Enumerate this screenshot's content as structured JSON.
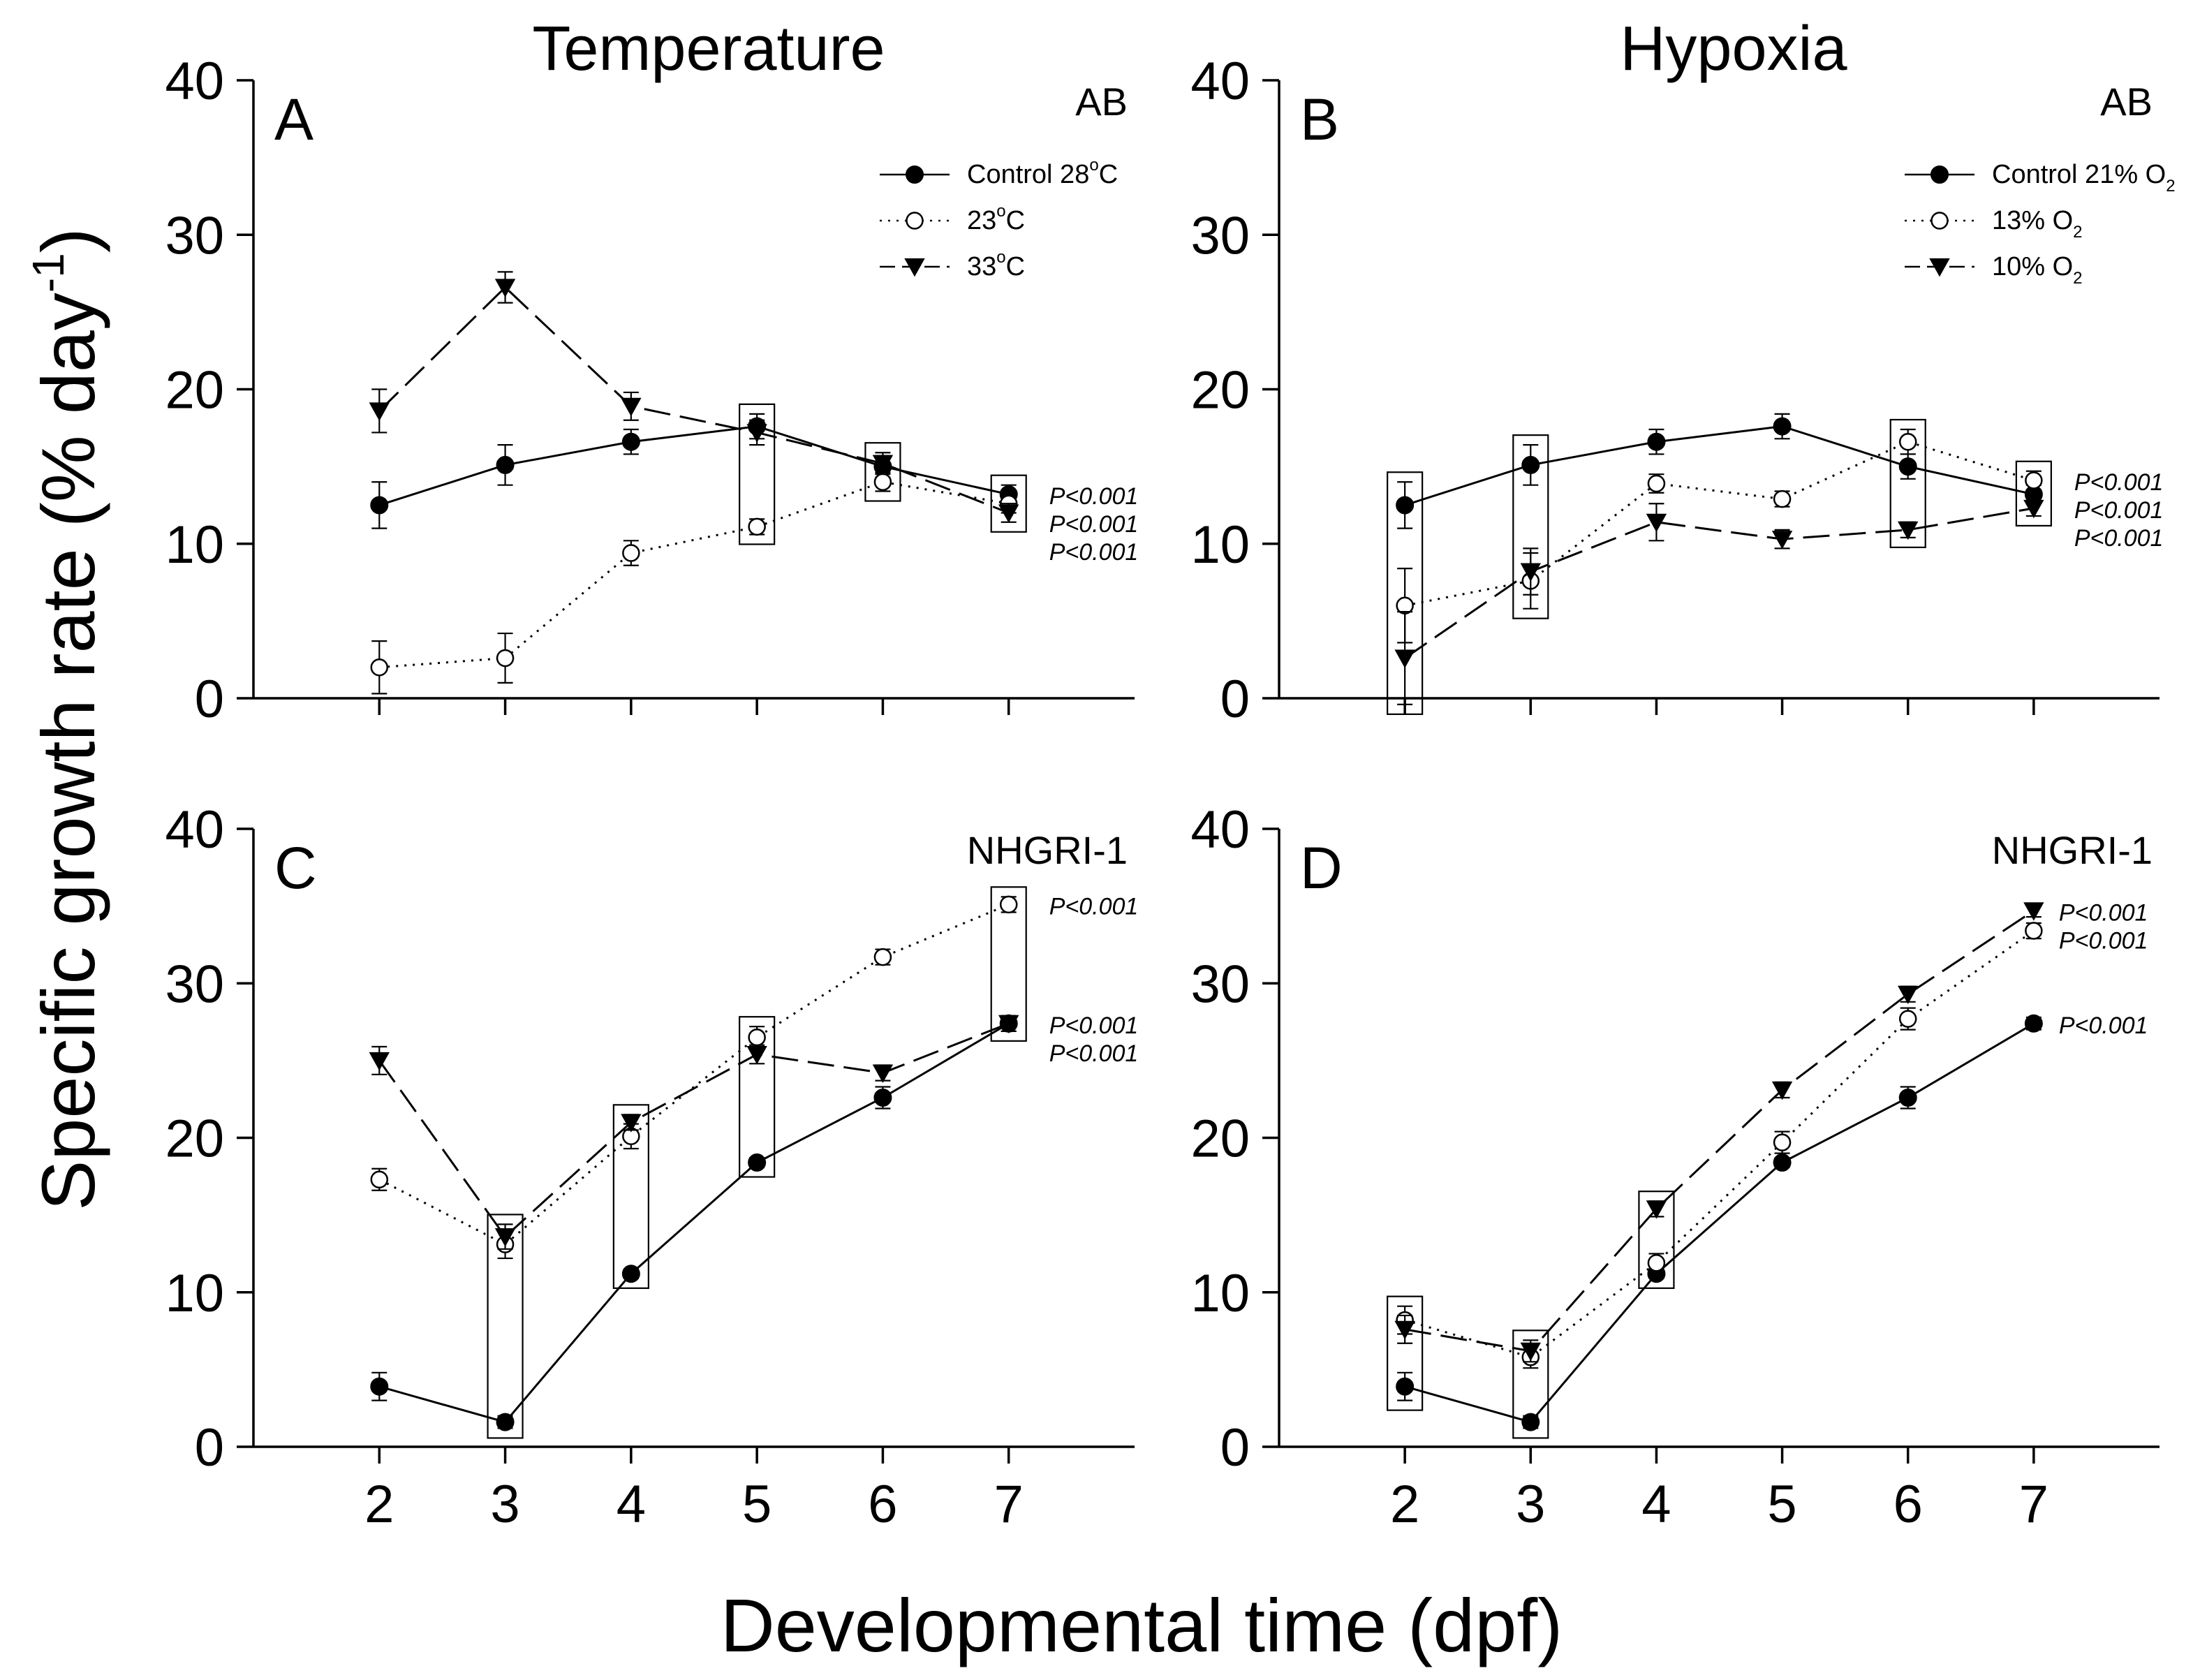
{
  "figure": {
    "column_titles": [
      "Temperature",
      "Hypoxia"
    ],
    "ylabel": "Specific growth rate (% day",
    "ylabel_sup": "-1",
    "ylabel_end": ")",
    "xlabel": "Developmental time (dpf)"
  },
  "chart_data": [
    {
      "type": "line",
      "panel_letter": "A",
      "strain": "AB",
      "x": [
        2,
        3,
        4,
        5,
        6,
        7
      ],
      "xlim": [
        1,
        8
      ],
      "ylim": [
        0,
        40
      ],
      "yticks": [
        0,
        10,
        20,
        30,
        40
      ],
      "show_xticklabels": false,
      "legend_position": "top-right",
      "series": [
        {
          "name": "Control 28°C",
          "legend_main": "Control 28",
          "legend_sup": "o",
          "legend_tail": "C",
          "marker": "filled-circle",
          "line": "solid",
          "values": [
            12.5,
            15.1,
            16.6,
            17.6,
            15.0,
            13.2
          ],
          "errors": [
            1.5,
            1.3,
            0.8,
            0.8,
            0.7,
            0.6
          ]
        },
        {
          "name": "23°C",
          "legend_main": "23",
          "legend_sup": "o",
          "legend_tail": "C",
          "marker": "open-circle",
          "line": "dotted",
          "values": [
            2.0,
            2.6,
            9.4,
            11.1,
            14.0,
            12.6
          ],
          "errors": [
            1.7,
            1.6,
            0.8,
            0.5,
            0.6,
            0.6
          ]
        },
        {
          "name": "33°C",
          "legend_main": "33",
          "legend_sup": "o",
          "legend_tail": "C",
          "marker": "filled-triangle-down",
          "line": "dashed",
          "values": [
            18.6,
            26.6,
            18.9,
            17.2,
            15.2,
            12.0
          ],
          "errors": [
            1.4,
            1.0,
            0.9,
            0.8,
            0.7,
            0.6
          ]
        }
      ],
      "boxed_points": [
        5,
        6,
        7
      ],
      "pvalues": [
        "P<0.001",
        "P<0.001",
        "P<0.001"
      ]
    },
    {
      "type": "line",
      "panel_letter": "B",
      "strain": "AB",
      "x": [
        2,
        3,
        4,
        5,
        6,
        7
      ],
      "xlim": [
        1,
        8
      ],
      "ylim": [
        0,
        40
      ],
      "yticks": [
        0,
        10,
        20,
        30,
        40
      ],
      "show_xticklabels": false,
      "legend_position": "top-right",
      "series": [
        {
          "name": "Control 21% O2",
          "legend_main": "Control 21% O",
          "legend_sub": "2",
          "marker": "filled-circle",
          "line": "solid",
          "values": [
            12.5,
            15.1,
            16.6,
            17.6,
            15.0,
            13.2
          ],
          "errors": [
            1.5,
            1.3,
            0.8,
            0.8,
            0.8,
            0.6
          ]
        },
        {
          "name": "13% O2",
          "legend_main": "13% O",
          "legend_sub": "2",
          "marker": "open-circle",
          "line": "dotted",
          "values": [
            6.0,
            7.6,
            13.9,
            12.9,
            16.6,
            14.1
          ],
          "errors": [
            2.4,
            1.8,
            0.6,
            0.5,
            0.8,
            0.6
          ]
        },
        {
          "name": "10% O2",
          "legend_main": "10% O",
          "legend_sub": "2",
          "marker": "filled-triangle-down",
          "line": "dashed",
          "values": [
            2.6,
            8.2,
            11.4,
            10.3,
            10.9,
            12.3
          ],
          "errors": [
            3.0,
            1.5,
            1.2,
            0.6,
            0.5,
            0.5
          ]
        }
      ],
      "boxed_points": [
        2,
        3,
        6,
        7
      ],
      "pvalues": [
        "P<0.001",
        "P<0.001",
        "P<0.001"
      ]
    },
    {
      "type": "line",
      "panel_letter": "C",
      "strain": "NHGRI-1",
      "x": [
        2,
        3,
        4,
        5,
        6,
        7
      ],
      "xlim": [
        1,
        8
      ],
      "ylim": [
        0,
        40
      ],
      "yticks": [
        0,
        10,
        20,
        30,
        40
      ],
      "xticks": [
        2,
        3,
        4,
        5,
        6,
        7
      ],
      "show_xticklabels": true,
      "series": [
        {
          "name": "Control 28°C",
          "marker": "filled-circle",
          "line": "solid",
          "values": [
            3.9,
            1.6,
            11.2,
            18.4,
            22.6,
            27.4
          ],
          "errors": [
            0.9,
            0.4,
            0.3,
            0.3,
            0.7,
            0.5
          ]
        },
        {
          "name": "23°C",
          "marker": "open-circle",
          "line": "dotted",
          "values": [
            17.3,
            13.1,
            20.1,
            26.5,
            31.7,
            35.1
          ],
          "errors": [
            0.7,
            0.9,
            0.8,
            0.7,
            0.5,
            0.5
          ]
        },
        {
          "name": "33°C",
          "marker": "filled-triangle-down",
          "line": "dashed",
          "values": [
            25.0,
            13.6,
            21.0,
            25.4,
            24.2,
            27.4
          ],
          "errors": [
            0.9,
            0.8,
            0.5,
            0.6,
            0.5,
            0.5
          ]
        }
      ],
      "boxed_points": [
        3,
        4,
        5,
        7
      ],
      "pvalues": [
        "P<0.001",
        "P<0.001",
        "P<0.001"
      ]
    },
    {
      "type": "line",
      "panel_letter": "D",
      "strain": "NHGRI-1",
      "x": [
        2,
        3,
        4,
        5,
        6,
        7
      ],
      "xlim": [
        1,
        8
      ],
      "ylim": [
        0,
        40
      ],
      "yticks": [
        0,
        10,
        20,
        30,
        40
      ],
      "xticks": [
        2,
        3,
        4,
        5,
        6,
        7
      ],
      "show_xticklabels": true,
      "series": [
        {
          "name": "Control 21% O2",
          "marker": "filled-circle",
          "line": "solid",
          "values": [
            3.9,
            1.6,
            11.2,
            18.4,
            22.6,
            27.4
          ],
          "errors": [
            0.9,
            0.4,
            0.3,
            0.3,
            0.7,
            0.4
          ]
        },
        {
          "name": "13% O2",
          "marker": "open-circle",
          "line": "dotted",
          "values": [
            8.2,
            5.8,
            11.9,
            19.7,
            27.7,
            33.4
          ],
          "errors": [
            0.9,
            0.7,
            0.6,
            0.7,
            0.7,
            0.5
          ]
        },
        {
          "name": "10% O2",
          "marker": "filled-triangle-down",
          "line": "dashed",
          "values": [
            7.6,
            6.2,
            15.4,
            23.1,
            29.3,
            34.7
          ],
          "errors": [
            0.9,
            0.7,
            0.5,
            0.5,
            0.5,
            0.4
          ]
        }
      ],
      "boxed_points": [
        2,
        3,
        4
      ],
      "pvalues": [
        "P<0.001",
        "P<0.001",
        "P<0.001"
      ]
    }
  ]
}
